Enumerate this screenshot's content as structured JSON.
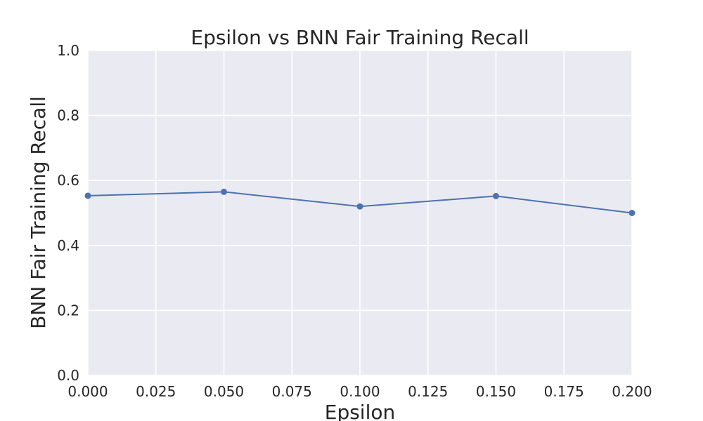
{
  "chart_data": {
    "type": "line",
    "title": "Epsilon vs BNN Fair Training Recall",
    "xlabel": "Epsilon",
    "ylabel": "BNN Fair Training Recall",
    "xlim": [
      0.0,
      0.2
    ],
    "ylim": [
      0.0,
      1.0
    ],
    "xticks": [
      "0.000",
      "0.025",
      "0.050",
      "0.075",
      "0.100",
      "0.125",
      "0.150",
      "0.175",
      "0.200"
    ],
    "yticks": [
      "0.0",
      "0.2",
      "0.4",
      "0.6",
      "0.8",
      "1.0"
    ],
    "grid": true,
    "colors": {
      "background": "#eaeaf2",
      "grid": "#ffffff",
      "line": "#4c72b0"
    },
    "series": [
      {
        "x": [
          0.0,
          0.05,
          0.1,
          0.15,
          0.2
        ],
        "values": [
          0.553,
          0.565,
          0.52,
          0.552,
          0.5
        ]
      }
    ]
  }
}
